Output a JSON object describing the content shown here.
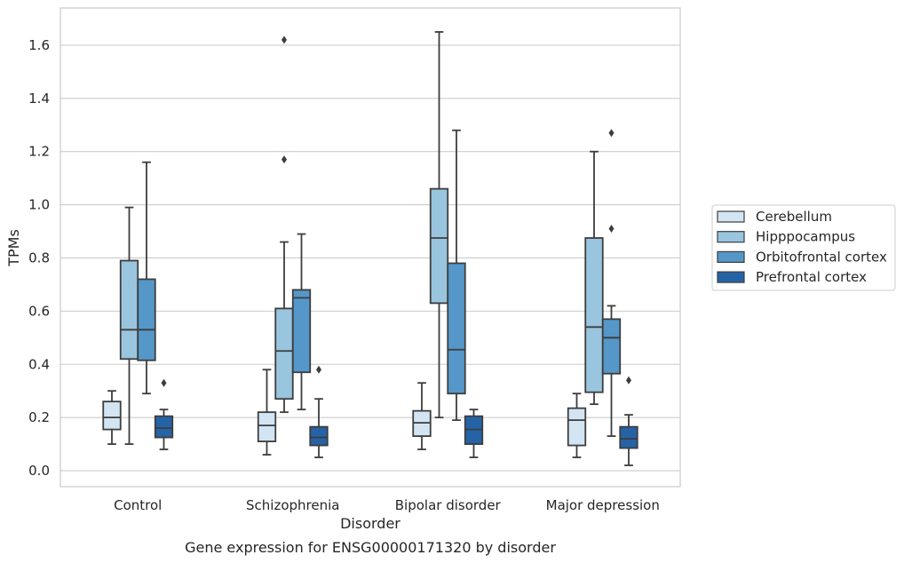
{
  "chart_data": {
    "type": "box",
    "ylabel": "TPMs",
    "xlabel": "Disorder",
    "caption": "Gene expression for ENSG00000171320 by disorder",
    "ylim": [
      -0.06,
      1.74
    ],
    "yticks": [
      0.0,
      0.2,
      0.4,
      0.6,
      0.8,
      1.0,
      1.2,
      1.4,
      1.6
    ],
    "ytick_labels": [
      "0.0",
      "0.2",
      "0.4",
      "0.6",
      "0.8",
      "1.0",
      "1.2",
      "1.4",
      "1.6"
    ],
    "grid": true,
    "legend_position": "right",
    "categories": [
      "Control",
      "Schizophrenia",
      "Bipolar disorder",
      "Major depression"
    ],
    "series": [
      {
        "name": "Cerebellum",
        "color": "#d3e4f3",
        "boxes": [
          {
            "whislo": 0.1,
            "q1": 0.155,
            "med": 0.2,
            "q3": 0.26,
            "whishi": 0.3,
            "fliers": []
          },
          {
            "whislo": 0.06,
            "q1": 0.11,
            "med": 0.17,
            "q3": 0.22,
            "whishi": 0.38,
            "fliers": []
          },
          {
            "whislo": 0.08,
            "q1": 0.13,
            "med": 0.18,
            "q3": 0.225,
            "whishi": 0.33,
            "fliers": []
          },
          {
            "whislo": 0.05,
            "q1": 0.095,
            "med": 0.19,
            "q3": 0.235,
            "whishi": 0.29,
            "fliers": []
          }
        ]
      },
      {
        "name": "Hipppocampus",
        "color": "#9ac5de",
        "boxes": [
          {
            "whislo": 0.1,
            "q1": 0.42,
            "med": 0.53,
            "q3": 0.79,
            "whishi": 0.99,
            "fliers": []
          },
          {
            "whislo": 0.22,
            "q1": 0.27,
            "med": 0.45,
            "q3": 0.61,
            "whishi": 0.86,
            "fliers": [
              1.17,
              1.62
            ]
          },
          {
            "whislo": 0.2,
            "q1": 0.63,
            "med": 0.875,
            "q3": 1.06,
            "whishi": 1.65,
            "fliers": []
          },
          {
            "whislo": 0.25,
            "q1": 0.295,
            "med": 0.54,
            "q3": 0.875,
            "whishi": 1.2,
            "fliers": []
          }
        ]
      },
      {
        "name": "Orbitofrontal cortex",
        "color": "#5597c8",
        "boxes": [
          {
            "whislo": 0.29,
            "q1": 0.415,
            "med": 0.53,
            "q3": 0.72,
            "whishi": 1.16,
            "fliers": []
          },
          {
            "whislo": 0.23,
            "q1": 0.37,
            "med": 0.65,
            "q3": 0.68,
            "whishi": 0.89,
            "fliers": []
          },
          {
            "whislo": 0.19,
            "q1": 0.29,
            "med": 0.455,
            "q3": 0.78,
            "whishi": 1.28,
            "fliers": []
          },
          {
            "whislo": 0.13,
            "q1": 0.365,
            "med": 0.5,
            "q3": 0.57,
            "whishi": 0.62,
            "fliers": [
              0.91,
              1.27
            ]
          }
        ]
      },
      {
        "name": "Prefrontal cortex",
        "color": "#2563a6",
        "boxes": [
          {
            "whislo": 0.08,
            "q1": 0.125,
            "med": 0.16,
            "q3": 0.205,
            "whishi": 0.23,
            "fliers": [
              0.33
            ]
          },
          {
            "whislo": 0.05,
            "q1": 0.095,
            "med": 0.125,
            "q3": 0.165,
            "whishi": 0.27,
            "fliers": [
              0.38
            ]
          },
          {
            "whislo": 0.05,
            "q1": 0.1,
            "med": 0.155,
            "q3": 0.205,
            "whishi": 0.23,
            "fliers": []
          },
          {
            "whislo": 0.02,
            "q1": 0.085,
            "med": 0.12,
            "q3": 0.165,
            "whishi": 0.21,
            "fliers": [
              0.34
            ]
          }
        ]
      }
    ]
  }
}
